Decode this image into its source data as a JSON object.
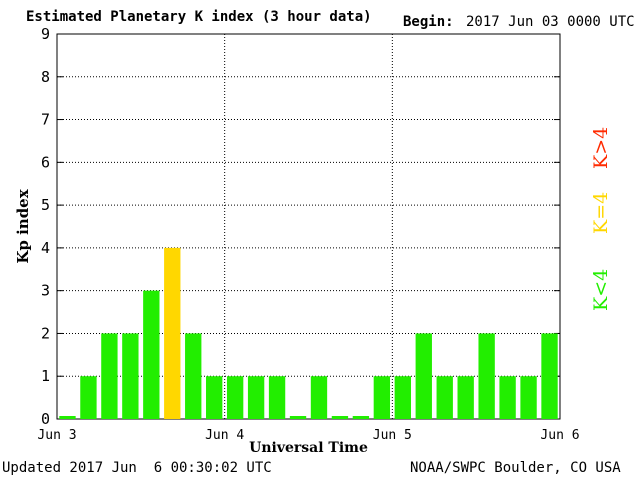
{
  "header": {
    "title": "Estimated Planetary K index (3 hour data)",
    "begin_label": "Begin:",
    "begin_value": "2017 Jun 03 0000 UTC"
  },
  "footer": {
    "updated": "Updated 2017 Jun  6 00:30:02 UTC",
    "source": "NOAA/SWPC Boulder, CO USA"
  },
  "legend": {
    "above": {
      "text": "K>4",
      "color": "#ff2a00"
    },
    "equal": {
      "text": "K=4",
      "color": "#ffd700"
    },
    "below": {
      "text": "K<4",
      "color": "#22ee00"
    }
  },
  "chart_data": {
    "type": "bar",
    "ylabel": "Kp index",
    "xlabel": "Universal Time",
    "ylim": [
      0,
      9
    ],
    "yticks": [
      0,
      1,
      2,
      3,
      4,
      5,
      6,
      7,
      8,
      9
    ],
    "xticks": [
      "Jun 3",
      "Jun 4",
      "Jun 5",
      "Jun 6"
    ],
    "grid": true,
    "interval_hours": 3,
    "values": [
      0,
      1,
      2,
      2,
      3,
      4,
      2,
      1,
      1,
      1,
      1,
      0,
      1,
      0,
      0,
      1,
      1,
      2,
      1,
      1,
      2,
      1,
      1,
      2
    ],
    "colors": {
      "below4": "#22ee00",
      "eq4": "#ffd700",
      "above4": "#ff2a00"
    }
  }
}
